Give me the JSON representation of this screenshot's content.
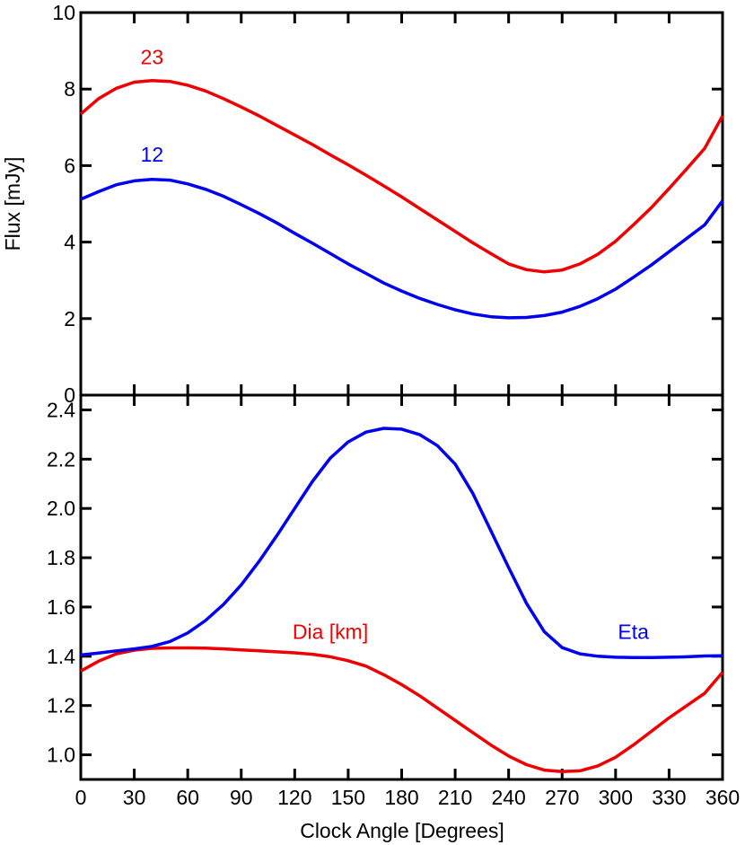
{
  "chart_data": [
    {
      "type": "line",
      "panel": "top",
      "xlim": [
        0,
        360
      ],
      "ylim": [
        0,
        10
      ],
      "ylabel": "Flux [mJy]",
      "xlabel": "",
      "grid": false,
      "y_ticks": [
        0,
        2,
        4,
        6,
        8,
        10
      ],
      "y_tick_labels": [
        "0",
        "2",
        "4",
        "6",
        "8",
        "10"
      ],
      "x": [
        0,
        10,
        20,
        30,
        40,
        50,
        60,
        70,
        80,
        90,
        100,
        110,
        120,
        130,
        140,
        150,
        160,
        170,
        180,
        190,
        200,
        210,
        220,
        230,
        240,
        250,
        260,
        270,
        280,
        290,
        300,
        310,
        320,
        330,
        340,
        350,
        360
      ],
      "series": [
        {
          "name": "23",
          "color": "#ee0000",
          "label_at": [
            40,
            8.65
          ],
          "values": [
            7.35,
            7.75,
            8.02,
            8.18,
            8.22,
            8.2,
            8.1,
            7.95,
            7.75,
            7.53,
            7.3,
            7.05,
            6.8,
            6.55,
            6.28,
            6.02,
            5.75,
            5.47,
            5.18,
            4.88,
            4.58,
            4.28,
            3.98,
            3.7,
            3.43,
            3.28,
            3.22,
            3.27,
            3.43,
            3.68,
            4.02,
            4.45,
            4.9,
            5.4,
            5.92,
            6.45,
            7.3
          ]
        },
        {
          "name": "12",
          "color": "#0000ee",
          "label_at": [
            40,
            6.1
          ],
          "values": [
            5.12,
            5.32,
            5.5,
            5.6,
            5.64,
            5.62,
            5.52,
            5.38,
            5.2,
            4.98,
            4.75,
            4.5,
            4.23,
            3.97,
            3.7,
            3.43,
            3.18,
            2.93,
            2.72,
            2.53,
            2.37,
            2.23,
            2.12,
            2.05,
            2.02,
            2.03,
            2.08,
            2.17,
            2.32,
            2.52,
            2.77,
            3.08,
            3.4,
            3.75,
            4.1,
            4.45,
            5.08
          ]
        }
      ]
    },
    {
      "type": "line",
      "panel": "bottom",
      "xlim": [
        0,
        360
      ],
      "ylim": [
        0.9,
        2.46
      ],
      "xlabel": "Clock Angle [Degrees]",
      "ylabel": "",
      "grid": false,
      "y_ticks": [
        1.0,
        1.2,
        1.4,
        1.6,
        1.8,
        2.0,
        2.2,
        2.4
      ],
      "y_tick_labels": [
        "1.0",
        "1.2",
        "1.4",
        "1.6",
        "1.8",
        "2.0",
        "2.2",
        "2.4"
      ],
      "x_ticks": [
        0,
        30,
        60,
        90,
        120,
        150,
        180,
        210,
        240,
        270,
        300,
        330,
        360
      ],
      "x_tick_labels": [
        "0",
        "30",
        "60",
        "90",
        "120",
        "150",
        "180",
        "210",
        "240",
        "270",
        "300",
        "330",
        "360"
      ],
      "x": [
        0,
        10,
        20,
        30,
        40,
        50,
        60,
        70,
        80,
        90,
        100,
        110,
        120,
        130,
        140,
        150,
        160,
        170,
        180,
        190,
        200,
        210,
        220,
        230,
        240,
        250,
        260,
        270,
        280,
        290,
        300,
        310,
        320,
        330,
        340,
        350,
        360
      ],
      "series": [
        {
          "name": "Dia [km]",
          "color": "#ee0000",
          "label_at": [
            140,
            1.47
          ],
          "values": [
            1.34,
            1.38,
            1.41,
            1.425,
            1.432,
            1.434,
            1.434,
            1.433,
            1.43,
            1.426,
            1.422,
            1.418,
            1.414,
            1.408,
            1.398,
            1.382,
            1.36,
            1.325,
            1.285,
            1.24,
            1.19,
            1.14,
            1.09,
            1.04,
            0.995,
            0.96,
            0.938,
            0.932,
            0.935,
            0.955,
            0.99,
            1.04,
            1.095,
            1.15,
            1.2,
            1.25,
            1.335
          ]
        },
        {
          "name": "Eta",
          "color": "#0000ee",
          "label_at": [
            310,
            1.47
          ],
          "values": [
            1.405,
            1.413,
            1.422,
            1.43,
            1.44,
            1.46,
            1.495,
            1.545,
            1.61,
            1.69,
            1.785,
            1.89,
            2.0,
            2.11,
            2.205,
            2.27,
            2.31,
            2.325,
            2.322,
            2.3,
            2.255,
            2.18,
            2.06,
            1.91,
            1.76,
            1.615,
            1.5,
            1.435,
            1.41,
            1.4,
            1.396,
            1.395,
            1.395,
            1.396,
            1.398,
            1.401,
            1.402
          ]
        }
      ]
    }
  ]
}
